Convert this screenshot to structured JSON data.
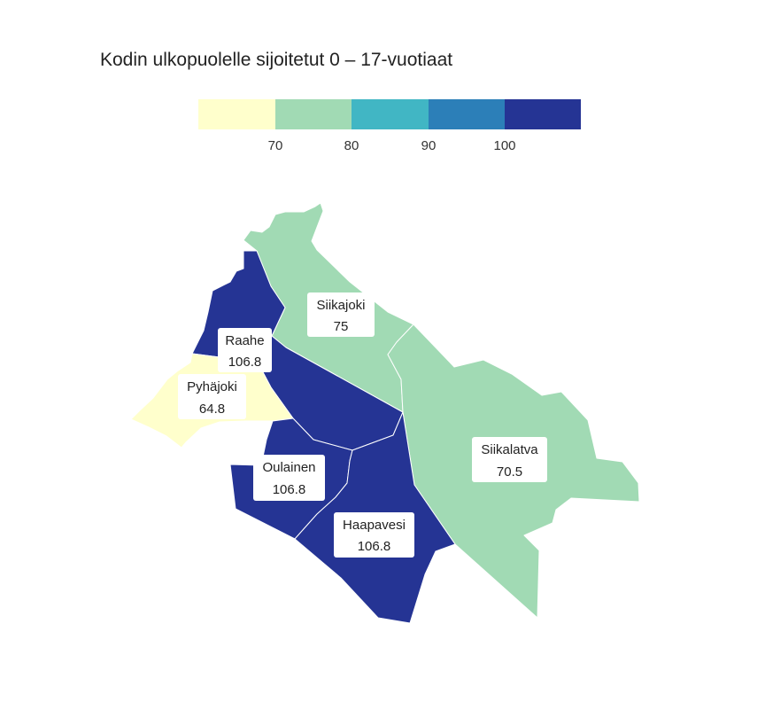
{
  "title": "Kodin ulkopuolelle sijoitetut 0 – 17-vuotiaat",
  "legend": {
    "bins": [
      {
        "color": "#ffffcc"
      },
      {
        "color": "#a1dab4"
      },
      {
        "color": "#41b6c4"
      },
      {
        "color": "#2c7fb8"
      },
      {
        "color": "#253494"
      }
    ],
    "ticks": [
      "70",
      "80",
      "90",
      "100"
    ]
  },
  "municipalities": [
    {
      "name": "Siikajoki",
      "value": "75",
      "color": "#a1dab4"
    },
    {
      "name": "Siikalatva",
      "value": "70.5",
      "color": "#a1dab4"
    },
    {
      "name": "Raahe",
      "value": "106.8",
      "color": "#253494"
    },
    {
      "name": "Pyhäjoki",
      "value": "64.8",
      "color": "#ffffcc"
    },
    {
      "name": "Oulainen",
      "value": "106.8",
      "color": "#253494"
    },
    {
      "name": "Haapavesi",
      "value": "106.8",
      "color": "#253494"
    }
  ]
}
